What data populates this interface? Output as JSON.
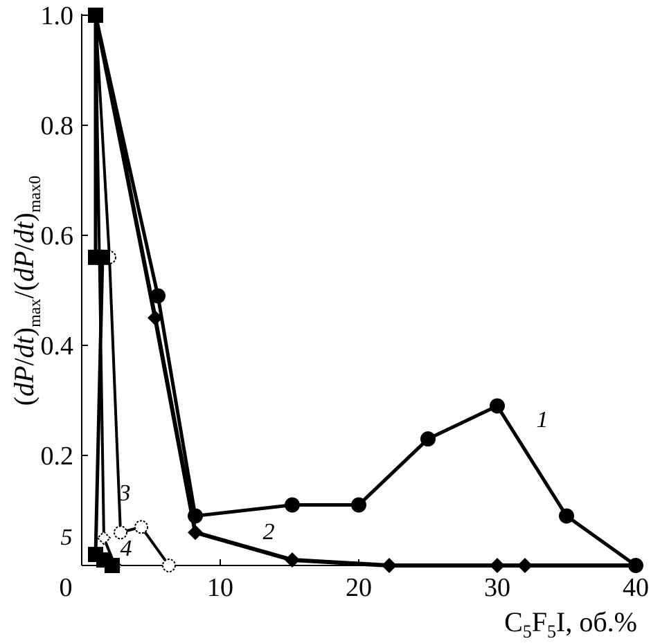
{
  "chart_data": {
    "type": "line",
    "xlabel_parts": {
      "a": "C",
      "b": "5",
      "c": "F",
      "d": "5",
      "e": "I, об.%"
    },
    "ylabel_parts": {
      "a": "(",
      "b": "dP",
      "c": "/",
      "d": "dt",
      "e": ")",
      "f": "max",
      "g": "/(",
      "h": "dP",
      "i": "/",
      "j": "dt",
      "k": ")",
      "l": "max0"
    },
    "xlim": [
      0,
      40
    ],
    "ylim": [
      0,
      1.0
    ],
    "x_ticks": [
      {
        "value": 0,
        "label": "0"
      },
      {
        "value": 10,
        "label": "10"
      },
      {
        "value": 20,
        "label": "20"
      },
      {
        "value": 30,
        "label": "30"
      },
      {
        "value": 40,
        "label": "40"
      }
    ],
    "y_ticks": [
      {
        "value": 0.2,
        "label": "0.2"
      },
      {
        "value": 0.4,
        "label": "0.4"
      },
      {
        "value": 0.6,
        "label": "0.6"
      },
      {
        "value": 0.8,
        "label": "0.8"
      },
      {
        "value": 1.0,
        "label": "1.0"
      }
    ],
    "grid": false,
    "series": [
      {
        "name": "1",
        "marker": "filled-circle",
        "points": [
          [
            1,
            1.0
          ],
          [
            5.5,
            0.49
          ],
          [
            8.2,
            0.09
          ],
          [
            15.2,
            0.11
          ],
          [
            20,
            0.11
          ],
          [
            25,
            0.23
          ],
          [
            30,
            0.29
          ],
          [
            35,
            0.09
          ],
          [
            40,
            0.0
          ]
        ]
      },
      {
        "name": "2",
        "marker": "filled-diamond",
        "points": [
          [
            1,
            1.0
          ],
          [
            5.3,
            0.45
          ],
          [
            8.2,
            0.06
          ],
          [
            15.2,
            0.01
          ],
          [
            22.2,
            0.0
          ],
          [
            30,
            0.0
          ],
          [
            32,
            0.0
          ],
          [
            40,
            0.0
          ]
        ]
      },
      {
        "name": "3",
        "marker": "open-circle",
        "points": [
          [
            1,
            1.0
          ],
          [
            2.0,
            0.56
          ],
          [
            2.8,
            0.06
          ],
          [
            4.3,
            0.07
          ],
          [
            6.3,
            0.0
          ]
        ]
      },
      {
        "name": "4",
        "marker": "open-diamond",
        "points": [
          [
            1,
            1.0
          ],
          [
            1.6,
            0.05
          ],
          [
            2.4,
            0.0
          ]
        ]
      },
      {
        "name": "5",
        "marker": "filled-square",
        "points": [
          [
            1,
            1.0
          ],
          [
            1.0,
            0.56
          ],
          [
            1.5,
            0.56
          ],
          [
            1.0,
            0.02
          ],
          [
            1.6,
            0.01
          ],
          [
            2.2,
            0.0
          ]
        ]
      }
    ],
    "series_label_positions": {
      "1": "right of peak",
      "2": "below plateau",
      "3": "above small bump",
      "4": "near origin",
      "5": "left of axis"
    }
  }
}
